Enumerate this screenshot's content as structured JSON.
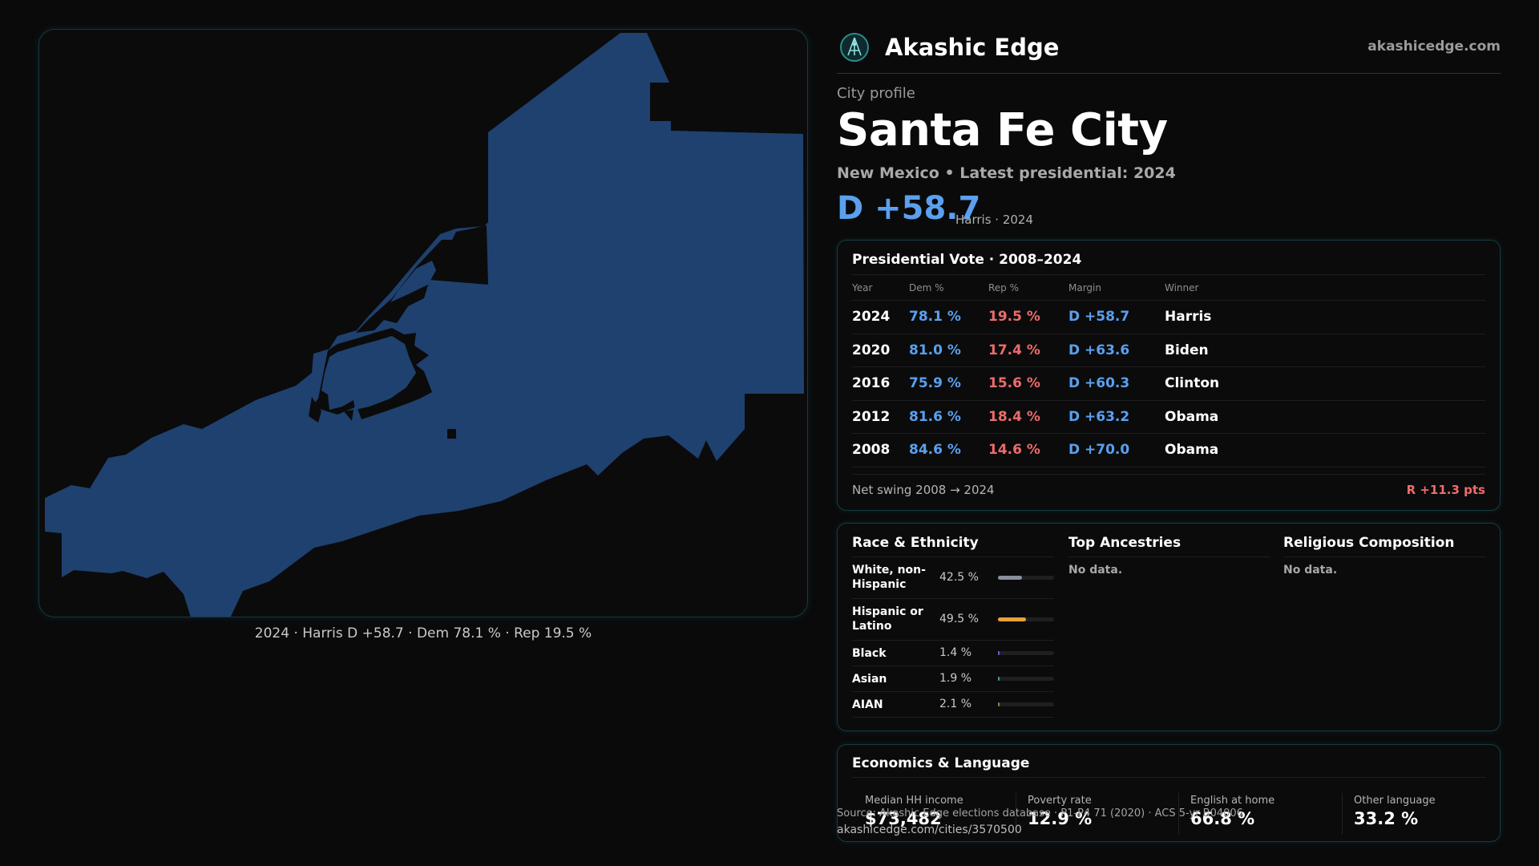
{
  "brand": {
    "name": "Akashic Edge",
    "url": "akashicedge.com",
    "logo_icon": "akashic-logo-icon"
  },
  "profile": {
    "eyebrow": "City profile",
    "title": "Santa Fe City",
    "subtitle": "New Mexico • Latest presidential: 2024",
    "margin": "D +58.7",
    "margin_sub": "Harris · 2024"
  },
  "map": {
    "caption": "2024 · Harris D +58.7 · Dem 78.1 % · Rep 19.5 %",
    "fill_color": "#1f416f",
    "border_color": "#163a3e"
  },
  "presidential": {
    "title": "Presidential Vote · 2008–2024",
    "columns": [
      "Year",
      "Dem %",
      "Rep %",
      "Margin",
      "Winner"
    ],
    "rows": [
      {
        "year": "2024",
        "dem": "78.1 %",
        "rep": "19.5 %",
        "margin": "D +58.7",
        "winner": "Harris"
      },
      {
        "year": "2020",
        "dem": "81.0 %",
        "rep": "17.4 %",
        "margin": "D +63.6",
        "winner": "Biden"
      },
      {
        "year": "2016",
        "dem": "75.9 %",
        "rep": "15.6 %",
        "margin": "D +60.3",
        "winner": "Clinton"
      },
      {
        "year": "2012",
        "dem": "81.6 %",
        "rep": "18.4 %",
        "margin": "D +63.2",
        "winner": "Obama"
      },
      {
        "year": "2008",
        "dem": "84.6 %",
        "rep": "14.6 %",
        "margin": "D +70.0",
        "winner": "Obama"
      }
    ],
    "swing_label": "Net swing 2008 → 2024",
    "swing_value": "R +11.3 pts",
    "colors": {
      "dem": "#5aa0ee",
      "rep": "#ee6b6b"
    }
  },
  "race": {
    "title": "Race & Ethnicity",
    "rows": [
      {
        "label": "White, non-Hispanic",
        "pct": "42.5 %",
        "share": 0.425,
        "color": "#8a8f9c"
      },
      {
        "label": "Hispanic or Latino",
        "pct": "49.5 %",
        "share": 0.495,
        "color": "#e8a23a"
      },
      {
        "label": "Black",
        "pct": "1.4 %",
        "share": 0.014,
        "color": "#6a5ad8"
      },
      {
        "label": "Asian",
        "pct": "1.9 %",
        "share": 0.019,
        "color": "#2fa39a"
      },
      {
        "label": "AIAN",
        "pct": "2.1 %",
        "share": 0.021,
        "color": "#9a7b4a"
      }
    ]
  },
  "ancestries": {
    "title": "Top Ancestries",
    "empty": "No data."
  },
  "religion": {
    "title": "Religious Composition",
    "empty": "No data."
  },
  "economics": {
    "title": "Economics & Language",
    "stats": [
      {
        "label": "Median HH income",
        "value": "$73,482"
      },
      {
        "label": "Poverty rate",
        "value": "12.9 %"
      },
      {
        "label": "English at home",
        "value": "66.8 %"
      },
      {
        "label": "Other language",
        "value": "33.2 %"
      }
    ]
  },
  "footer": {
    "source": "Source: Akashic Edge elections database · P1-P4 71 (2020) · ACS 5-yr B04006",
    "url": "akashicedge.com/cities/3570500"
  }
}
